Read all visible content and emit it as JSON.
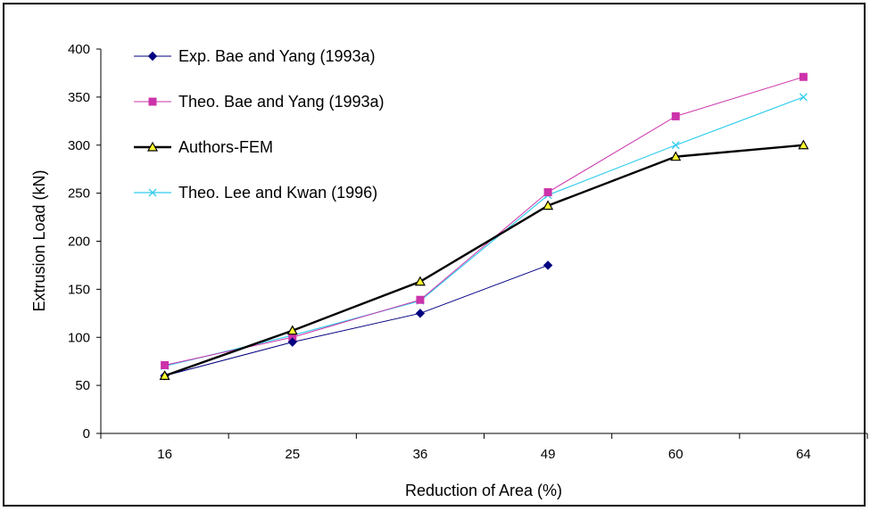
{
  "chart_data": {
    "type": "line",
    "title": "",
    "xlabel": "Reduction of Area (%)",
    "ylabel": "Extrusion Load (kN)",
    "categories": [
      "16",
      "25",
      "36",
      "49",
      "60",
      "64"
    ],
    "ylim": [
      0,
      400
    ],
    "yticks": [
      0,
      50,
      100,
      150,
      200,
      250,
      300,
      350,
      400
    ],
    "grid": false,
    "legend_position": "top-left",
    "series": [
      {
        "name": "Exp. Bae and Yang (1993a)",
        "values": [
          60,
          95,
          125,
          175,
          null,
          null
        ],
        "color": "#000080",
        "marker": "diamond",
        "line_width": 1
      },
      {
        "name": "Theo. Bae and Yang (1993a)",
        "values": [
          71,
          100,
          139,
          251,
          330,
          371
        ],
        "color": "#cc33aa",
        "marker": "square",
        "line_width": 1
      },
      {
        "name": "Authors-FEM",
        "values": [
          60,
          107,
          158,
          237,
          288,
          300
        ],
        "color": "#000000",
        "marker": "triangle",
        "line_width": 2.4
      },
      {
        "name": "Theo. Lee and Kwan (1996)",
        "values": [
          70,
          102,
          138,
          248,
          300,
          350
        ],
        "color": "#33ccee",
        "marker": "x",
        "line_width": 1.2
      }
    ]
  }
}
